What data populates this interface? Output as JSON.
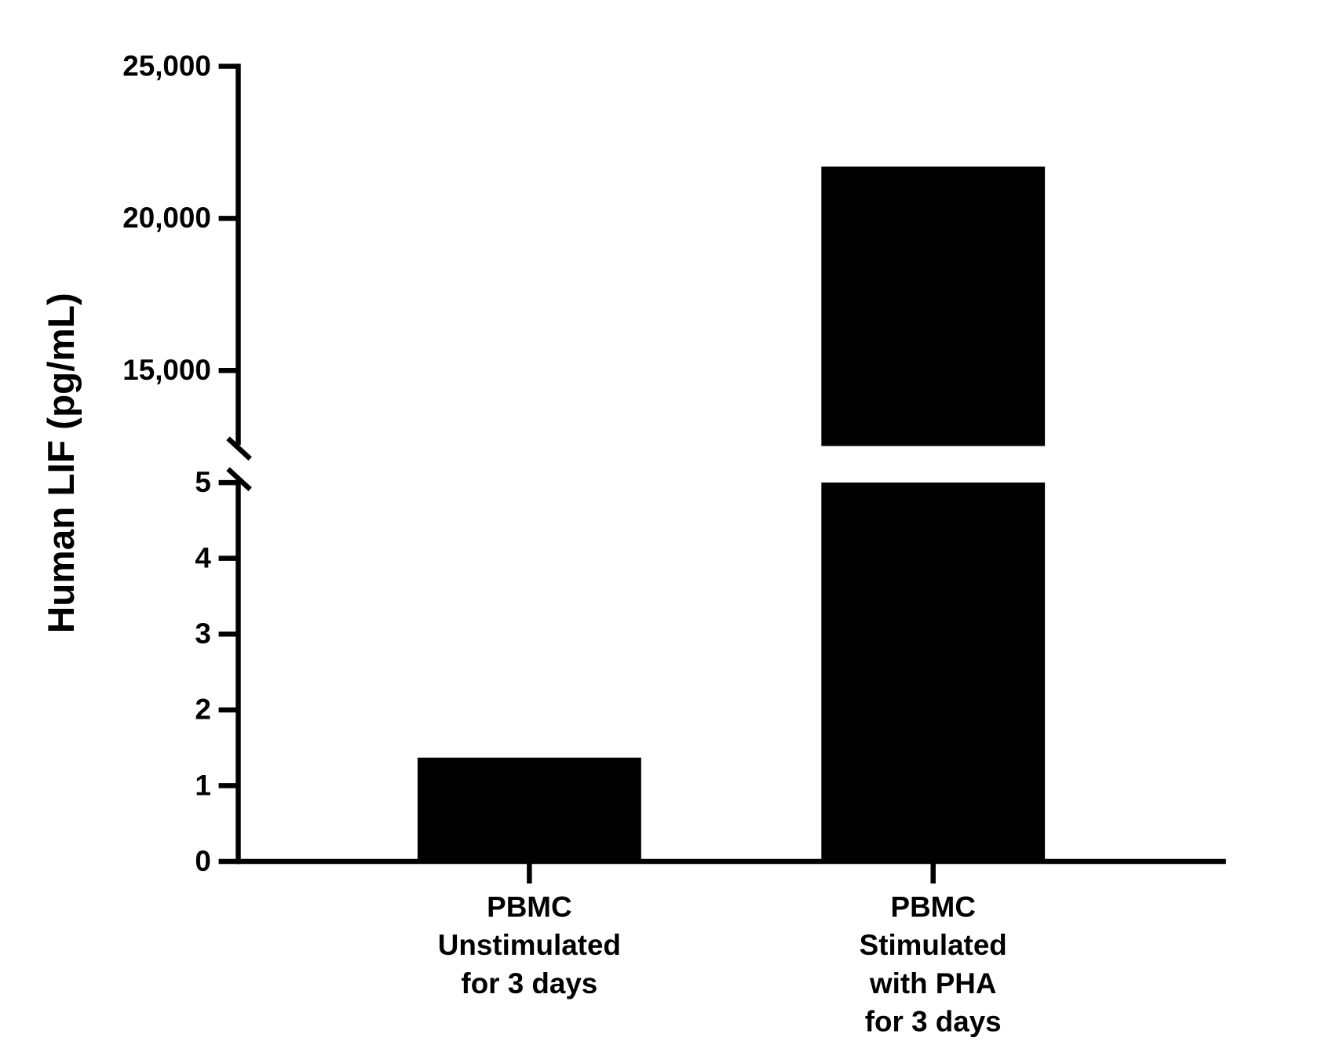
{
  "chart_data": {
    "type": "bar",
    "y_label": "Human LIF (pg/mL)",
    "categories": [
      [
        "PBMC",
        "Unstimulated",
        "for 3 days"
      ],
      [
        "PBMC",
        "Stimulated",
        "with PHA",
        "for 3 days"
      ]
    ],
    "values": [
      1.37,
      21700
    ],
    "color": "#000000",
    "y_segments": [
      {
        "ylim": [
          0,
          5
        ],
        "yticks": [
          0,
          1,
          2,
          3,
          4,
          5
        ]
      },
      {
        "ylim": [
          12600,
          25000
        ],
        "yticks": [
          {
            "value": 15000,
            "label": "15,000"
          },
          {
            "value": 20000,
            "label": "20,000"
          },
          {
            "value": 25000,
            "label": "25,000"
          }
        ]
      }
    ]
  }
}
